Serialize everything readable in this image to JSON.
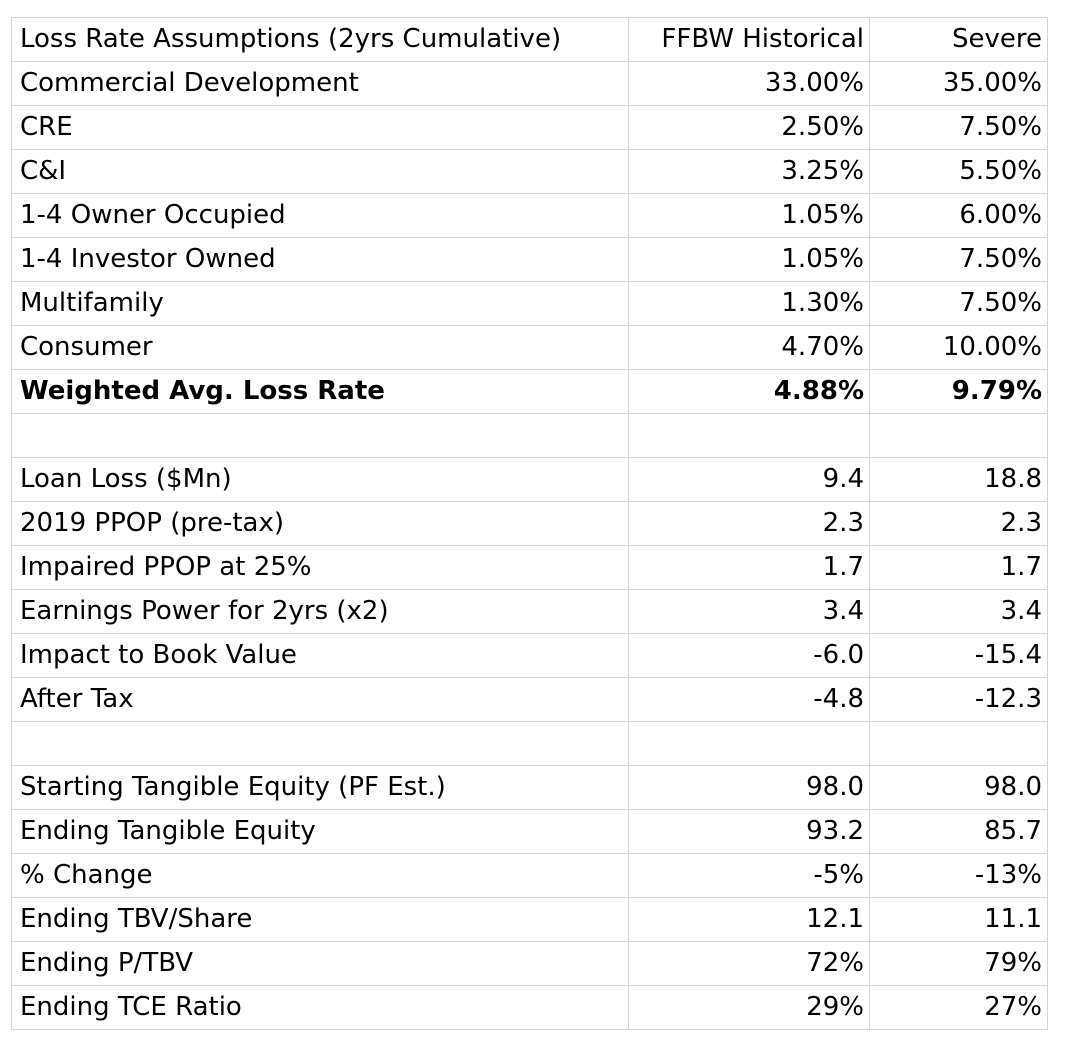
{
  "header": {
    "label": "Loss Rate Assumptions (2yrs Cumulative)",
    "col1": "FFBW Historical",
    "col2": "Severe"
  },
  "loss_rates": [
    {
      "label": "Commercial Development",
      "historical": "33.00%",
      "severe": "35.00%"
    },
    {
      "label": "CRE",
      "historical": "2.50%",
      "severe": "7.50%"
    },
    {
      "label": "C&I",
      "historical": "3.25%",
      "severe": "5.50%"
    },
    {
      "label": "1-4 Owner Occupied",
      "historical": "1.05%",
      "severe": "6.00%"
    },
    {
      "label": "1-4 Investor Owned",
      "historical": "1.05%",
      "severe": "7.50%"
    },
    {
      "label": "Multifamily",
      "historical": "1.30%",
      "severe": "7.50%"
    },
    {
      "label": "Consumer",
      "historical": "4.70%",
      "severe": "10.00%"
    }
  ],
  "weighted": {
    "label": "Weighted Avg. Loss Rate",
    "historical": "4.88%",
    "severe": "9.79%"
  },
  "earnings": [
    {
      "label": "Loan Loss ($Mn)",
      "historical": "9.4",
      "severe": "18.8"
    },
    {
      "label": "2019 PPOP (pre-tax)",
      "historical": "2.3",
      "severe": "2.3"
    },
    {
      "label": "Impaired PPOP at 25%",
      "historical": "1.7",
      "severe": "1.7"
    },
    {
      "label": "Earnings Power for 2yrs (x2)",
      "historical": "3.4",
      "severe": "3.4"
    },
    {
      "label": "Impact to Book Value",
      "historical": "-6.0",
      "severe": "-15.4"
    },
    {
      "label": "After Tax",
      "historical": "-4.8",
      "severe": "-12.3"
    }
  ],
  "equity": [
    {
      "label": "Starting Tangible Equity (PF Est.)",
      "historical": "98.0",
      "severe": "98.0"
    },
    {
      "label": "Ending Tangible Equity",
      "historical": "93.2",
      "severe": "85.7"
    },
    {
      "label": "% Change",
      "historical": "-5%",
      "severe": "-13%"
    },
    {
      "label": "Ending TBV/Share",
      "historical": "12.1",
      "severe": "11.1"
    },
    {
      "label": "Ending P/TBV",
      "historical": "72%",
      "severe": "79%"
    },
    {
      "label": "Ending TCE Ratio",
      "historical": "29%",
      "severe": "27%"
    }
  ]
}
